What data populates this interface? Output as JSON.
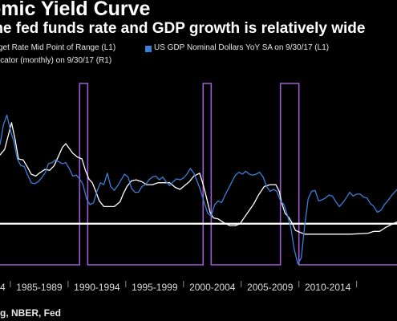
{
  "title": "omic Yield Curve",
  "subtitle": "the fed funds rate and GDP growth is relatively wide",
  "legend": [
    {
      "label": "get Rate Mid Point of Range  (L1)",
      "color": "#ffffff"
    },
    {
      "label": "US GDP Nominal Dollars YoY SA  on 9/30/17 (L1)",
      "color": "#3b7fd9"
    },
    {
      "label": "icator (monthly)  on 9/30/17 (R1)",
      "color": "#a05ad6"
    }
  ],
  "source": "g, NBER, Fed",
  "colors": {
    "background": "#000000",
    "fed": "#ffffff",
    "gdp": "#3b7fd9",
    "recession": "#a05ad6",
    "baseline": "#ffffff"
  },
  "chart_data": {
    "type": "line",
    "x_ticks": [
      "4",
      "1985-1989",
      "1990-1994",
      "1995-1999",
      "2000-2004",
      "2005-2009",
      "2010-2014",
      ""
    ],
    "x_range": [
      1983.6,
      2018.0
    ],
    "left_axis_range": [
      -3.2,
      16
    ],
    "right_axis_range": [
      0,
      1
    ],
    "series": [
      {
        "name": "get Rate Mid Point of Range  (L1)",
        "axis": "L1",
        "color": "#ffffff",
        "x": [
          1983.6,
          1984.0,
          1984.3,
          1984.6,
          1984.9,
          1985.2,
          1985.6,
          1986.0,
          1986.3,
          1986.7,
          1987.0,
          1987.5,
          1987.9,
          1988.3,
          1988.6,
          1989.0,
          1989.3,
          1989.6,
          1989.9,
          1990.3,
          1990.7,
          1991.0,
          1991.3,
          1991.6,
          1991.9,
          1992.2,
          1992.6,
          1993.0,
          1993.5,
          1994.0,
          1994.3,
          1994.6,
          1995.0,
          1995.4,
          1995.9,
          1996.3,
          1996.8,
          1997.3,
          1997.8,
          1998.3,
          1998.8,
          1999.2,
          1999.6,
          2000.0,
          2000.4,
          2000.9,
          2001.2,
          2001.5,
          2001.8,
          2002.1,
          2002.5,
          2003.0,
          2003.5,
          2004.0,
          2004.4,
          2004.8,
          2005.2,
          2005.6,
          2006.0,
          2006.5,
          2007.0,
          2007.5,
          2007.8,
          2008.0,
          2008.3,
          2008.6,
          2008.9,
          2009.2,
          2010.0,
          2012.0,
          2014.0,
          2015.5,
          2016.0,
          2016.5,
          2017.0,
          2017.5,
          2018.0
        ],
        "y": [
          8.4,
          9.0,
          10.4,
          11.8,
          10.1,
          8.0,
          7.9,
          7.1,
          6.4,
          6.2,
          6.5,
          6.9,
          6.8,
          7.3,
          8.1,
          9.2,
          9.6,
          9.1,
          8.6,
          8.2,
          8.0,
          6.8,
          5.9,
          5.5,
          4.6,
          3.6,
          3.0,
          3.0,
          3.0,
          3.5,
          4.4,
          5.1,
          5.7,
          5.8,
          5.6,
          5.3,
          5.3,
          5.5,
          5.5,
          5.5,
          5.0,
          4.8,
          5.2,
          5.6,
          6.2,
          6.5,
          5.3,
          3.9,
          2.4,
          1.8,
          1.7,
          1.3,
          1.0,
          1.0,
          1.2,
          1.9,
          2.6,
          3.3,
          4.2,
          5.1,
          5.3,
          5.3,
          4.6,
          3.4,
          2.3,
          1.9,
          1.3,
          0.5,
          0.1,
          0.1,
          0.1,
          0.2,
          0.4,
          0.4,
          0.8,
          1.1,
          1.4
        ]
      },
      {
        "name": "US GDP Nominal Dollars YoY SA  on 9/30/17 (L1)",
        "axis": "L1",
        "color": "#3b7fd9",
        "x": [
          1983.6,
          1983.9,
          1984.2,
          1984.5,
          1984.8,
          1985.1,
          1985.4,
          1985.7,
          1986.0,
          1986.3,
          1986.6,
          1986.9,
          1987.2,
          1987.5,
          1987.8,
          1988.1,
          1988.4,
          1988.7,
          1989.0,
          1989.3,
          1989.6,
          1989.9,
          1990.2,
          1990.5,
          1990.8,
          1991.1,
          1991.4,
          1991.7,
          1992.0,
          1992.3,
          1992.6,
          1992.9,
          1993.2,
          1993.5,
          1993.8,
          1994.1,
          1994.4,
          1994.7,
          1995.0,
          1995.3,
          1995.6,
          1995.9,
          1996.2,
          1996.5,
          1996.8,
          1997.1,
          1997.4,
          1997.7,
          1998.0,
          1998.3,
          1998.6,
          1998.9,
          1999.2,
          1999.5,
          1999.8,
          2000.1,
          2000.4,
          2000.7,
          2001.0,
          2001.3,
          2001.6,
          2001.9,
          2002.2,
          2002.5,
          2002.8,
          2003.1,
          2003.4,
          2003.7,
          2004.0,
          2004.3,
          2004.6,
          2004.9,
          2005.2,
          2005.5,
          2005.8,
          2006.1,
          2006.4,
          2006.7,
          2007.0,
          2007.3,
          2007.6,
          2007.9,
          2008.2,
          2008.5,
          2008.8,
          2009.1,
          2009.4,
          2009.7,
          2010.0,
          2010.3,
          2010.6,
          2010.9,
          2011.2,
          2011.5,
          2011.8,
          2012.1,
          2012.4,
          2012.7,
          2013.0,
          2013.3,
          2013.6,
          2013.9,
          2014.2,
          2014.5,
          2014.8,
          2015.1,
          2015.4,
          2015.7,
          2016.0,
          2016.3,
          2016.6,
          2016.9,
          2017.2,
          2017.5,
          2018.0
        ],
        "y": [
          9.5,
          11.6,
          12.6,
          11.0,
          9.8,
          8.0,
          7.3,
          7.2,
          6.3,
          5.5,
          5.4,
          5.6,
          6.0,
          6.5,
          7.5,
          7.6,
          7.9,
          7.7,
          7.5,
          7.6,
          7.0,
          6.2,
          6.3,
          5.9,
          5.3,
          3.8,
          3.2,
          3.4,
          4.6,
          5.5,
          5.3,
          6.5,
          5.1,
          4.7,
          5.2,
          5.8,
          6.4,
          6.1,
          4.9,
          4.5,
          4.5,
          5.1,
          5.3,
          5.8,
          6.1,
          6.2,
          5.8,
          6.1,
          5.6,
          5.2,
          5.6,
          5.9,
          5.8,
          6.0,
          6.4,
          7.0,
          6.5,
          5.6,
          4.6,
          3.4,
          2.3,
          2.0,
          3.2,
          3.6,
          3.4,
          4.2,
          4.9,
          5.6,
          6.3,
          6.6,
          6.4,
          6.7,
          6.4,
          6.3,
          6.4,
          6.6,
          6.1,
          5.1,
          4.6,
          4.8,
          4.6,
          3.6,
          3.2,
          2.1,
          0.8,
          -1.5,
          -3.0,
          -2.4,
          1.0,
          3.8,
          4.6,
          4.7,
          3.6,
          3.7,
          3.9,
          4.2,
          4.1,
          3.5,
          3.0,
          3.4,
          3.9,
          4.5,
          4.1,
          4.3,
          4.3,
          4.0,
          3.9,
          3.3,
          3.0,
          2.4,
          2.6,
          3.2,
          3.6,
          4.1,
          4.8
        ]
      },
      {
        "name": "icator (monthly)  on 9/30/17 (R1)",
        "axis": "R1",
        "color": "#a05ad6",
        "periods": [
          [
            1990.5,
            1991.2
          ],
          [
            2001.2,
            2001.9
          ],
          [
            2007.9,
            2009.5
          ]
        ]
      }
    ],
    "baseline": 1.2,
    "grid": false
  }
}
